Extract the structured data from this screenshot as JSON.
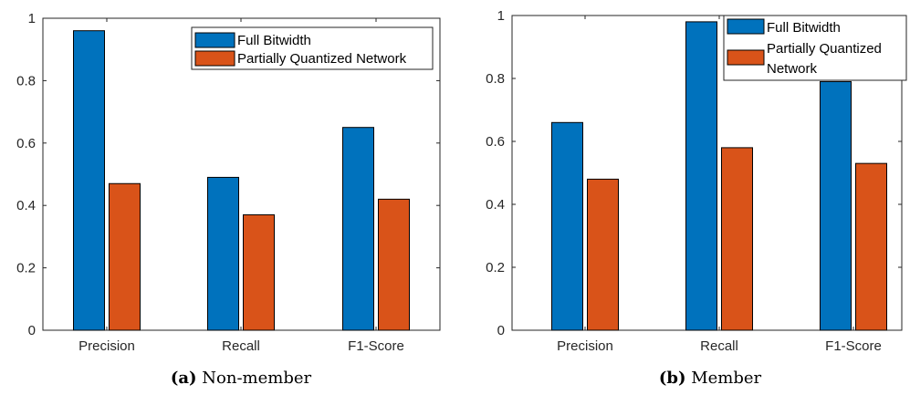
{
  "colors": {
    "full": "#0072BD",
    "partial": "#D95319",
    "axis": "#262626"
  },
  "chart_data": [
    {
      "type": "bar",
      "categories": [
        "Precision",
        "Recall",
        "F1-Score"
      ],
      "series": [
        {
          "name": "Full Bitwidth",
          "values": [
            0.96,
            0.49,
            0.65
          ]
        },
        {
          "name": "Partially Quantized Network",
          "values": [
            0.47,
            0.37,
            0.42
          ]
        }
      ],
      "ylim": [
        0,
        1
      ],
      "yticks": [
        "0",
        "0.2",
        "0.4",
        "0.6",
        "0.8",
        "1"
      ],
      "legend": [
        "Full Bitwidth",
        "Partially Quantized Network"
      ],
      "caption_label": "(a)",
      "caption_text": " Non-member"
    },
    {
      "type": "bar",
      "categories": [
        "Precision",
        "Recall",
        "F1-Score"
      ],
      "series": [
        {
          "name": "Full Bitwidth",
          "values": [
            0.66,
            0.98,
            0.79
          ]
        },
        {
          "name": "Partially Quantized Network",
          "values": [
            0.48,
            0.58,
            0.53
          ]
        }
      ],
      "ylim": [
        0,
        1
      ],
      "yticks": [
        "0",
        "0.2",
        "0.4",
        "0.6",
        "0.8",
        "1"
      ],
      "legend": [
        "Full Bitwidth",
        "Partially Quantized",
        "Network"
      ],
      "caption_label": "(b)",
      "caption_text": " Member"
    }
  ]
}
